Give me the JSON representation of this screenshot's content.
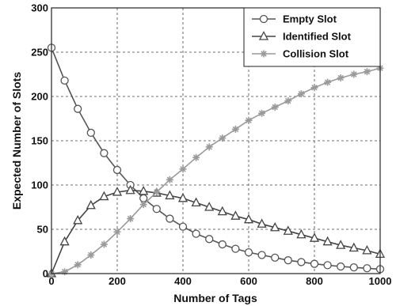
{
  "chart_data": {
    "type": "line",
    "xlabel": "Number of Tags",
    "ylabel": "Expected Number of Slots",
    "xlim": [
      0,
      1000
    ],
    "ylim": [
      0,
      300
    ],
    "x_ticks": [
      "0",
      "200",
      "400",
      "600",
      "800",
      "1000"
    ],
    "y_ticks": [
      "0",
      "50",
      "100",
      "150",
      "200",
      "250",
      "300"
    ],
    "grid": true,
    "legend_position": "top-right",
    "x": [
      0,
      40,
      80,
      120,
      160,
      200,
      240,
      280,
      320,
      360,
      400,
      440,
      480,
      520,
      560,
      600,
      640,
      680,
      720,
      760,
      800,
      840,
      880,
      920,
      960,
      1000
    ],
    "series": [
      {
        "name": "Empty Slot",
        "marker": "circle",
        "color": "#555555",
        "values": [
          255,
          218,
          186,
          159,
          136,
          117,
          100,
          85,
          73,
          62,
          53,
          45,
          39,
          33,
          28,
          24,
          21,
          18,
          15,
          13,
          11,
          9.5,
          8,
          7,
          6,
          5
        ]
      },
      {
        "name": "Identified Slot",
        "marker": "triangle",
        "color": "#444444",
        "values": [
          0,
          36,
          60,
          77,
          87,
          92,
          94,
          93,
          91,
          88,
          85,
          80,
          75,
          70,
          65,
          61,
          56,
          52,
          48,
          44,
          40,
          36,
          32,
          29,
          26,
          22
        ]
      },
      {
        "name": "Collision Slot",
        "marker": "star",
        "color": "#9a9a9a",
        "values": [
          0,
          2,
          10,
          21,
          33,
          47,
          62,
          78,
          92,
          106,
          118,
          131,
          143,
          153,
          163,
          173,
          181,
          188,
          195,
          203,
          210,
          216,
          221,
          225,
          228,
          232
        ]
      }
    ]
  }
}
